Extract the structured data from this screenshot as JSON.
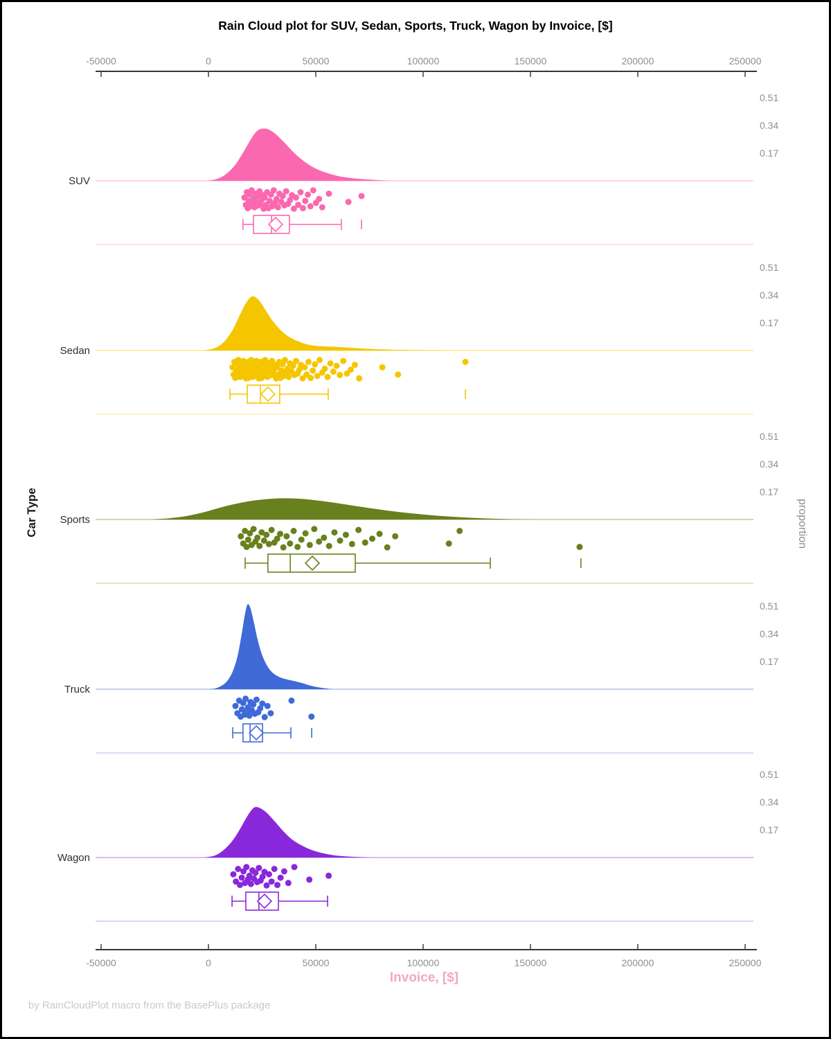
{
  "chart_data": {
    "type": "raincloud",
    "title": "Rain Cloud plot for SUV, Sedan, Sports, Truck, Wagon by Invoice, [$]",
    "footer": "by RainCloudPlot macro from the BasePlus package",
    "x_axis": {
      "label": "Invoice, [$]",
      "ticks": [
        -50000,
        0,
        50000,
        100000,
        150000,
        200000,
        250000
      ],
      "range": [
        -55000,
        257000
      ]
    },
    "y_axis": {
      "label": "Car Type"
    },
    "y2_axis": {
      "label": "proportion",
      "ticks": [
        0.51,
        0.34,
        0.17
      ]
    },
    "grid": "off",
    "legend": "none",
    "categories": [
      {
        "name": "SUV",
        "color": "#FA69AF",
        "density": [
          [
            -3000,
            0
          ],
          [
            2000,
            0.005
          ],
          [
            7000,
            0.03
          ],
          [
            12000,
            0.09
          ],
          [
            16000,
            0.17
          ],
          [
            20000,
            0.26
          ],
          [
            23000,
            0.31
          ],
          [
            25500,
            0.32
          ],
          [
            28000,
            0.315
          ],
          [
            31000,
            0.29
          ],
          [
            35000,
            0.24
          ],
          [
            40000,
            0.17
          ],
          [
            45000,
            0.115
          ],
          [
            50000,
            0.075
          ],
          [
            56000,
            0.045
          ],
          [
            62000,
            0.025
          ],
          [
            70000,
            0.012
          ],
          [
            78000,
            0.005
          ],
          [
            85000,
            0
          ]
        ],
        "points": [
          16800,
          17400,
          17900,
          18300,
          18800,
          19200,
          19700,
          20100,
          20600,
          21000,
          21500,
          21900,
          22400,
          22900,
          23300,
          23800,
          24200,
          24700,
          25200,
          25700,
          26200,
          26800,
          27300,
          27900,
          28500,
          29100,
          29700,
          30400,
          31000,
          31700,
          32400,
          33100,
          33900,
          34600,
          35400,
          36200,
          37100,
          38000,
          38900,
          39800,
          40800,
          41800,
          42900,
          44000,
          45100,
          46300,
          47500,
          48800,
          50100,
          51500,
          53000,
          56100,
          65200,
          71300
        ],
        "box": {
          "whisker_low": 16100,
          "q1": 21000,
          "median": 29400,
          "q3": 37700,
          "whisker_high": 61900,
          "mean": 31300,
          "outliers": [
            71300
          ]
        }
      },
      {
        "name": "Sedan",
        "color": "#F5C600",
        "density": [
          [
            -2000,
            0
          ],
          [
            3000,
            0.015
          ],
          [
            7000,
            0.05
          ],
          [
            11000,
            0.12
          ],
          [
            14000,
            0.2
          ],
          [
            17000,
            0.28
          ],
          [
            19500,
            0.325
          ],
          [
            21500,
            0.33
          ],
          [
            24000,
            0.3
          ],
          [
            27000,
            0.24
          ],
          [
            30000,
            0.18
          ],
          [
            34000,
            0.12
          ],
          [
            38000,
            0.08
          ],
          [
            43000,
            0.05
          ],
          [
            48000,
            0.032
          ],
          [
            54000,
            0.025
          ],
          [
            60000,
            0.022
          ],
          [
            67000,
            0.016
          ],
          [
            75000,
            0.01
          ],
          [
            85000,
            0.005
          ],
          [
            100000,
            0.002
          ],
          [
            112000,
            0
          ]
        ],
        "points": [
          11200,
          11700,
          12100,
          12500,
          12900,
          13200,
          13600,
          13900,
          14200,
          14500,
          14800,
          15100,
          15400,
          15700,
          16000,
          16300,
          16600,
          16900,
          17200,
          17500,
          17800,
          18100,
          18400,
          18700,
          19000,
          19300,
          19600,
          19900,
          20200,
          20500,
          20800,
          21100,
          21400,
          21700,
          22000,
          22300,
          22600,
          22900,
          23200,
          23500,
          23800,
          24100,
          24400,
          24800,
          25200,
          25600,
          26000,
          26400,
          26800,
          27200,
          27600,
          28000,
          28400,
          28800,
          29200,
          29600,
          30000,
          30500,
          31000,
          31500,
          32000,
          32500,
          33000,
          33500,
          34000,
          34500,
          35000,
          35600,
          36200,
          36800,
          37400,
          38000,
          38700,
          39400,
          40100,
          40800,
          41500,
          42300,
          43100,
          43900,
          44800,
          45700,
          46600,
          47600,
          48600,
          49600,
          50700,
          51800,
          53000,
          54200,
          55500,
          56800,
          58200,
          59700,
          61200,
          62800,
          64500,
          66300,
          68200,
          70200,
          81000,
          88300,
          119700
        ],
        "box": {
          "whisker_low": 10000,
          "q1": 18100,
          "median": 24200,
          "q3": 33200,
          "whisker_high": 55800,
          "mean": 27700,
          "outliers": [
            119700
          ]
        }
      },
      {
        "name": "Sports",
        "color": "#69801E",
        "density": [
          [
            -27000,
            0
          ],
          [
            -18000,
            0.008
          ],
          [
            -10000,
            0.022
          ],
          [
            -2000,
            0.045
          ],
          [
            6000,
            0.075
          ],
          [
            14000,
            0.1
          ],
          [
            22000,
            0.118
          ],
          [
            30000,
            0.128
          ],
          [
            36000,
            0.13
          ],
          [
            43000,
            0.127
          ],
          [
            50000,
            0.118
          ],
          [
            58000,
            0.104
          ],
          [
            66000,
            0.088
          ],
          [
            75000,
            0.07
          ],
          [
            85000,
            0.052
          ],
          [
            95000,
            0.037
          ],
          [
            105000,
            0.025
          ],
          [
            115000,
            0.016
          ],
          [
            125000,
            0.009
          ],
          [
            135000,
            0.004
          ],
          [
            145000,
            0.001
          ],
          [
            152000,
            0
          ]
        ],
        "points": [
          15100,
          16200,
          17000,
          17800,
          18500,
          19300,
          20100,
          21000,
          21900,
          22800,
          23800,
          24800,
          25900,
          27000,
          28200,
          29400,
          30700,
          32000,
          33400,
          34900,
          36400,
          38000,
          39700,
          41500,
          43300,
          45200,
          47200,
          49300,
          51500,
          53800,
          56200,
          58700,
          61300,
          64000,
          66900,
          69900,
          73000,
          76300,
          79700,
          83300,
          87000,
          112000,
          117000,
          172900
        ],
        "box": {
          "whisker_low": 17100,
          "q1": 27700,
          "median": 38100,
          "q3": 68400,
          "whisker_high": 131300,
          "mean": 48400,
          "outliers": [
            173500
          ]
        }
      },
      {
        "name": "Truck",
        "color": "#3F6AD8",
        "density": [
          [
            500,
            0
          ],
          [
            4000,
            0.008
          ],
          [
            8000,
            0.04
          ],
          [
            11000,
            0.1
          ],
          [
            13500,
            0.2
          ],
          [
            15500,
            0.34
          ],
          [
            17000,
            0.46
          ],
          [
            18200,
            0.52
          ],
          [
            19500,
            0.5
          ],
          [
            21000,
            0.42
          ],
          [
            23000,
            0.3
          ],
          [
            25000,
            0.21
          ],
          [
            27500,
            0.14
          ],
          [
            30000,
            0.1
          ],
          [
            33000,
            0.075
          ],
          [
            36500,
            0.06
          ],
          [
            40000,
            0.05
          ],
          [
            43500,
            0.038
          ],
          [
            47000,
            0.024
          ],
          [
            51000,
            0.012
          ],
          [
            55000,
            0.004
          ],
          [
            58000,
            0
          ]
        ],
        "points": [
          12600,
          13500,
          14300,
          15000,
          15600,
          16200,
          16800,
          17300,
          17900,
          18400,
          19000,
          19600,
          20200,
          20900,
          21600,
          22400,
          23200,
          24100,
          25100,
          26200,
          27500,
          29000,
          38700,
          48000
        ],
        "box": {
          "whisker_low": 11300,
          "q1": 16100,
          "median": 19400,
          "q3": 25200,
          "whisker_high": 38400,
          "mean": 22300,
          "outliers": [
            48100
          ]
        }
      },
      {
        "name": "Wagon",
        "color": "#8928DB",
        "density": [
          [
            -2000,
            0
          ],
          [
            3000,
            0.012
          ],
          [
            7000,
            0.045
          ],
          [
            11000,
            0.1
          ],
          [
            14500,
            0.17
          ],
          [
            17500,
            0.24
          ],
          [
            20000,
            0.29
          ],
          [
            22000,
            0.31
          ],
          [
            24500,
            0.3
          ],
          [
            27500,
            0.27
          ],
          [
            31000,
            0.22
          ],
          [
            35000,
            0.16
          ],
          [
            39000,
            0.11
          ],
          [
            44000,
            0.07
          ],
          [
            49000,
            0.042
          ],
          [
            55000,
            0.022
          ],
          [
            61000,
            0.01
          ],
          [
            68000,
            0.004
          ],
          [
            75000,
            0
          ]
        ],
        "points": [
          11600,
          12800,
          13800,
          14700,
          15500,
          16300,
          17000,
          17700,
          18400,
          19100,
          19800,
          20500,
          21200,
          21900,
          22700,
          23500,
          24300,
          25200,
          26100,
          27100,
          28200,
          29400,
          30700,
          32100,
          33600,
          35300,
          37200,
          40000,
          47000,
          56000
        ],
        "box": {
          "whisker_low": 11000,
          "q1": 17400,
          "median": 23500,
          "q3": 32600,
          "whisker_high": 55500,
          "mean": 26100,
          "outliers": []
        }
      }
    ],
    "colors": {
      "axis": "#1A1A1A",
      "tick_label": "#8E8E8E",
      "category_label": "#2E2E2E",
      "x_label": "#F2A8C2",
      "footer": "#C9C9C9"
    }
  }
}
